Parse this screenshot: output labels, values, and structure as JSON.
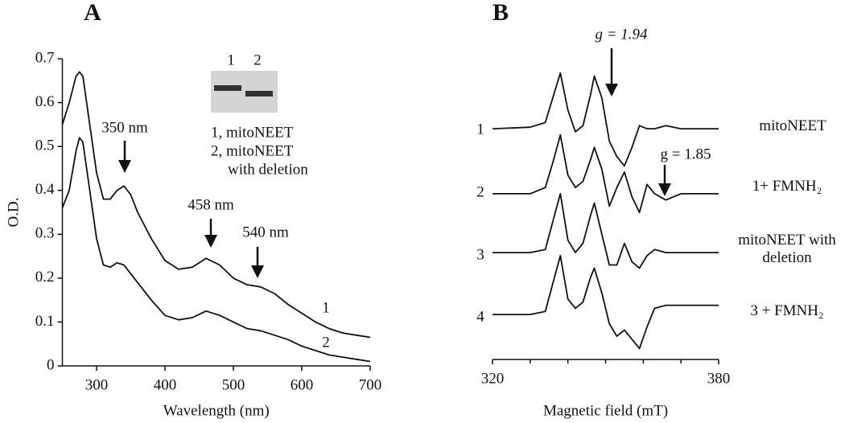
{
  "chart_data": [
    {
      "type": "line",
      "title": "A",
      "xlabel": "Wavelength (nm)",
      "ylabel": "O.D.",
      "xlim": [
        250,
        700
      ],
      "xticks": [
        300,
        400,
        500,
        600,
        700
      ],
      "ylim": [
        0,
        0.7
      ],
      "yticks": [
        0,
        0.1,
        0.2,
        0.3,
        0.4,
        0.5,
        0.6,
        0.7
      ],
      "x": [
        250,
        260,
        270,
        275,
        280,
        290,
        300,
        310,
        320,
        330,
        340,
        350,
        360,
        380,
        400,
        420,
        440,
        460,
        480,
        500,
        520,
        540,
        560,
        580,
        600,
        620,
        640,
        660,
        680,
        700
      ],
      "series": [
        {
          "name": "1",
          "color": "#111111",
          "values": [
            0.55,
            0.6,
            0.66,
            0.67,
            0.66,
            0.55,
            0.44,
            0.38,
            0.38,
            0.4,
            0.41,
            0.39,
            0.35,
            0.29,
            0.24,
            0.22,
            0.225,
            0.245,
            0.23,
            0.2,
            0.185,
            0.18,
            0.165,
            0.14,
            0.12,
            0.1,
            0.085,
            0.075,
            0.07,
            0.065
          ]
        },
        {
          "name": "2",
          "color": "#111111",
          "values": [
            0.36,
            0.4,
            0.49,
            0.52,
            0.51,
            0.4,
            0.29,
            0.23,
            0.225,
            0.235,
            0.23,
            0.21,
            0.19,
            0.15,
            0.115,
            0.105,
            0.11,
            0.125,
            0.115,
            0.1,
            0.085,
            0.08,
            0.07,
            0.06,
            0.045,
            0.035,
            0.025,
            0.02,
            0.015,
            0.01
          ]
        }
      ],
      "annotations": [
        "350 nm",
        "458 nm",
        "540 nm"
      ],
      "inset": {
        "lanes": [
          "1",
          "2"
        ],
        "text": [
          "1, mitoNEET",
          "2, mitoNEET",
          "with deletion"
        ]
      }
    },
    {
      "type": "line",
      "title": "B",
      "xlabel": "Magnetic field (mT)",
      "xlim": [
        320,
        380
      ],
      "xticks": [
        320,
        380
      ],
      "minor_xticks": [
        330,
        340,
        350,
        360,
        370
      ],
      "ylim": [
        0,
        100
      ],
      "x": [
        320,
        330,
        334,
        336,
        338,
        340,
        342,
        344,
        346,
        347,
        349,
        351,
        353,
        355,
        357,
        359,
        361,
        363,
        366,
        370,
        375,
        380
      ],
      "series": [
        {
          "name": "mitoNEET",
          "label": "1",
          "color": "#111111",
          "values": [
            74,
            74.5,
            76,
            84,
            92,
            80,
            73,
            75,
            85,
            91,
            84,
            70,
            65,
            62,
            68,
            75,
            74,
            74,
            75,
            74,
            74,
            74
          ]
        },
        {
          "name": "1+ FMNH₂",
          "label": "2",
          "color": "#111111",
          "values": [
            53,
            53,
            55,
            63,
            72,
            59,
            55,
            57,
            64,
            68,
            61,
            49,
            55,
            60,
            52,
            47,
            56,
            53,
            51,
            53,
            53,
            53
          ]
        },
        {
          "name": "mitoNEET with deletion",
          "label": "3",
          "color": "#111111",
          "values": [
            34,
            34,
            35,
            44,
            53,
            38,
            34,
            37,
            46,
            50,
            40,
            30,
            30,
            37,
            31,
            29,
            33,
            35,
            34,
            34,
            34,
            34
          ]
        },
        {
          "name": "3 + FMNH₂",
          "label": "4",
          "color": "#111111",
          "values": [
            14,
            14,
            15,
            24,
            33,
            19,
            16,
            18,
            26,
            29,
            21,
            11,
            7,
            9,
            6,
            3,
            10,
            16,
            17,
            17,
            17,
            17
          ]
        }
      ],
      "annotations": [
        "g = 1.94",
        "g = 1.85"
      ]
    }
  ]
}
